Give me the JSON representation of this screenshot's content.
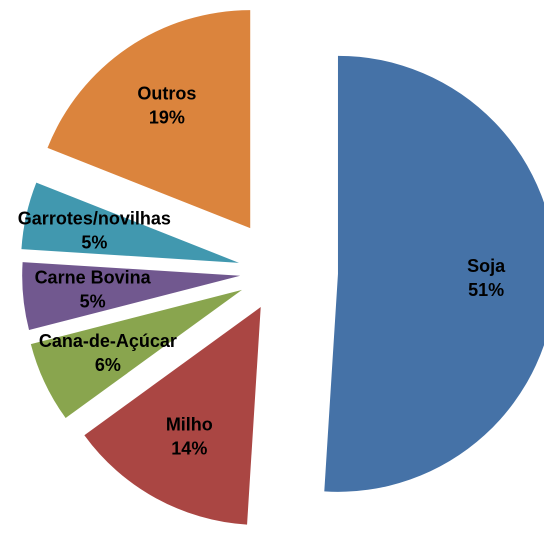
{
  "chart_data": {
    "type": "pie",
    "categories": [
      "Soja",
      "Milho",
      "Cana-de-Açúcar",
      "Carne Bovina",
      "Garrotes/novilhas",
      "Outros"
    ],
    "values": [
      51,
      14,
      6,
      5,
      5,
      19
    ],
    "value_labels": [
      "51%",
      "14%",
      "6%",
      "5%",
      "5%",
      "19%"
    ],
    "colors": [
      "#4572a7",
      "#aa4643",
      "#89a54e",
      "#71588f",
      "#4198af",
      "#db843d"
    ]
  }
}
